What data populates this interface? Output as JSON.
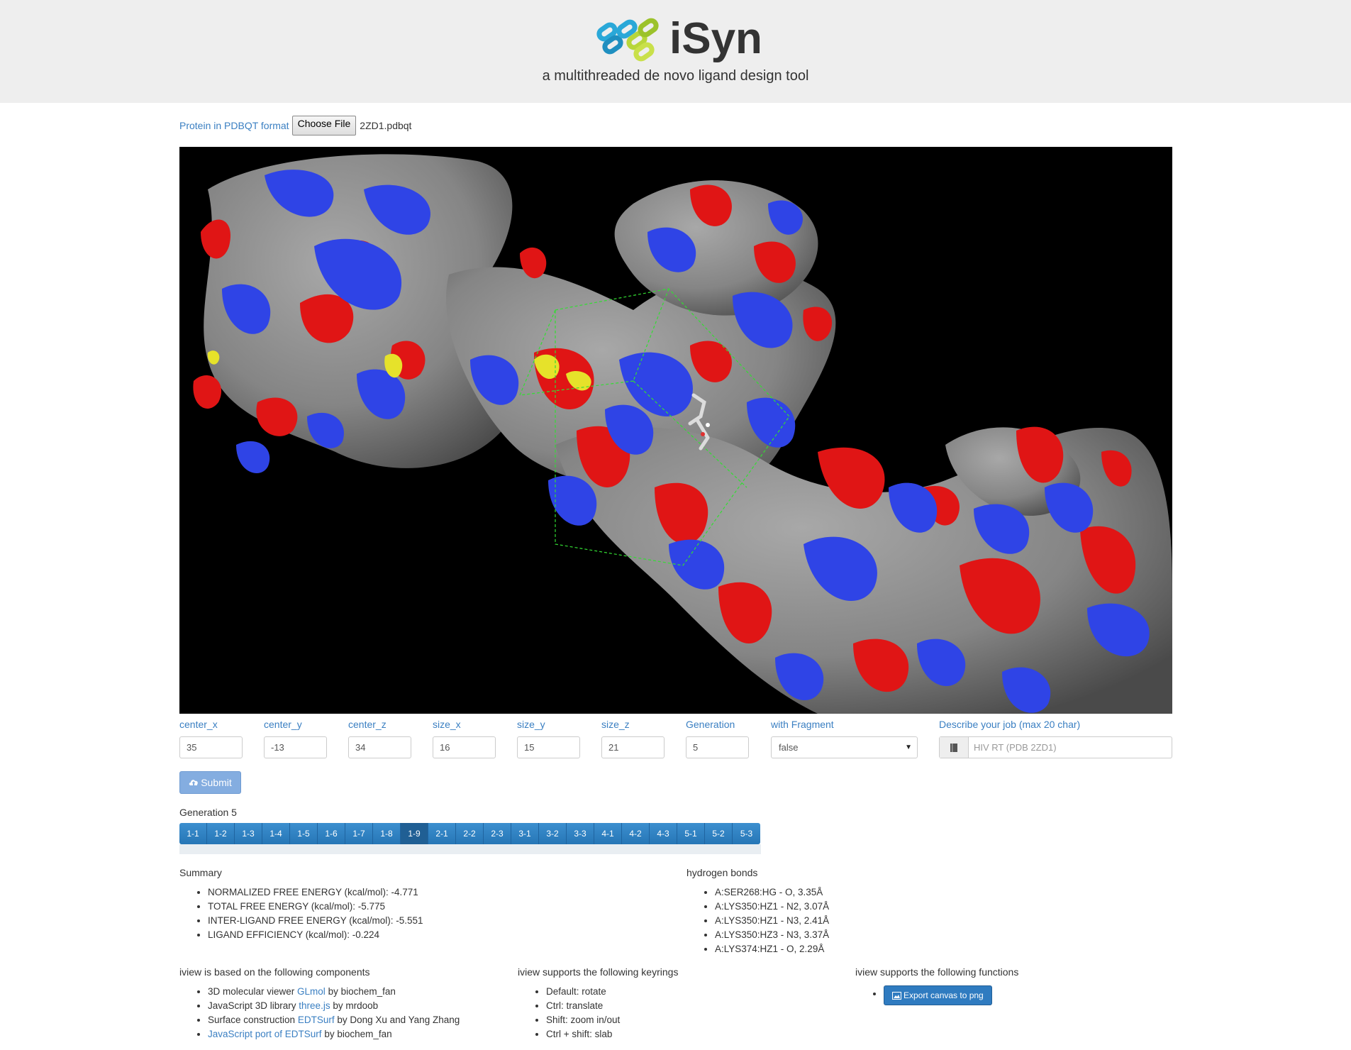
{
  "header": {
    "title": "iSyn",
    "tagline": "a multithreaded de novo ligand design tool"
  },
  "upload": {
    "label": "Protein in PDBQT format",
    "button": "Choose File",
    "filename": "2ZD1.pdbqt"
  },
  "viewer": {
    "label": "3D molecular surface viewer"
  },
  "params": {
    "center_x": {
      "label": "center_x",
      "value": "35"
    },
    "center_y": {
      "label": "center_y",
      "value": "-13"
    },
    "center_z": {
      "label": "center_z",
      "value": "34"
    },
    "size_x": {
      "label": "size_x",
      "value": "16"
    },
    "size_y": {
      "label": "size_y",
      "value": "15"
    },
    "size_z": {
      "label": "size_z",
      "value": "21"
    },
    "generation": {
      "label": "Generation",
      "value": "5"
    },
    "fragment": {
      "label": "with Fragment",
      "value": "false"
    },
    "description": {
      "label": "Describe your job (max 20 char)",
      "placeholder": "HIV RT (PDB 2ZD1)"
    }
  },
  "submit": {
    "label": "Submit"
  },
  "generation": {
    "label": "Generation 5",
    "pages": [
      "1-1",
      "1-2",
      "1-3",
      "1-4",
      "1-5",
      "1-6",
      "1-7",
      "1-8",
      "1-9",
      "2-1",
      "2-2",
      "2-3",
      "3-1",
      "3-2",
      "3-3",
      "4-1",
      "4-2",
      "4-3",
      "5-1",
      "5-2",
      "5-3"
    ],
    "active": "1-9"
  },
  "summary": {
    "title": "Summary",
    "items": [
      "NORMALIZED FREE ENERGY (kcal/mol): -4.771",
      "TOTAL FREE ENERGY (kcal/mol): -5.775",
      "INTER-LIGAND FREE ENERGY (kcal/mol): -5.551",
      "LIGAND EFFICIENCY (kcal/mol): -0.224"
    ]
  },
  "hbonds": {
    "title": "hydrogen bonds",
    "items": [
      "A:SER268:HG - O, 3.35Å",
      "A:LYS350:HZ1 - N2, 3.07Å",
      "A:LYS350:HZ1 - N3, 2.41Å",
      "A:LYS350:HZ3 - N3, 3.37Å",
      "A:LYS374:HZ1 - O, 2.29Å"
    ]
  },
  "components": {
    "title": "iview is based on the following components",
    "items": [
      {
        "pre": "3D molecular viewer ",
        "link": "GLmol",
        "post": " by biochem_fan"
      },
      {
        "pre": "JavaScript 3D library ",
        "link": "three.js",
        "post": " by mrdoob"
      },
      {
        "pre": "Surface construction ",
        "link": "EDTSurf",
        "post": " by Dong Xu and Yang Zhang"
      },
      {
        "pre": "",
        "link": "JavaScript port of EDTSurf",
        "post": " by biochem_fan"
      }
    ]
  },
  "keyrings": {
    "title": "iview supports the following keyrings",
    "items": [
      "Default: rotate",
      "Ctrl: translate",
      "Shift: zoom in/out",
      "Ctrl + shift: slab"
    ]
  },
  "functions": {
    "title": "iview supports the following functions",
    "export_label": "Export canvas to png"
  },
  "colors": {
    "header_bg": "#eeeeee",
    "link": "#3a7fc2",
    "primary": "#2f7bc0",
    "surface_grey": "#8c8c8c",
    "surface_red": "#e01515",
    "surface_blue": "#2f44e6"
  }
}
